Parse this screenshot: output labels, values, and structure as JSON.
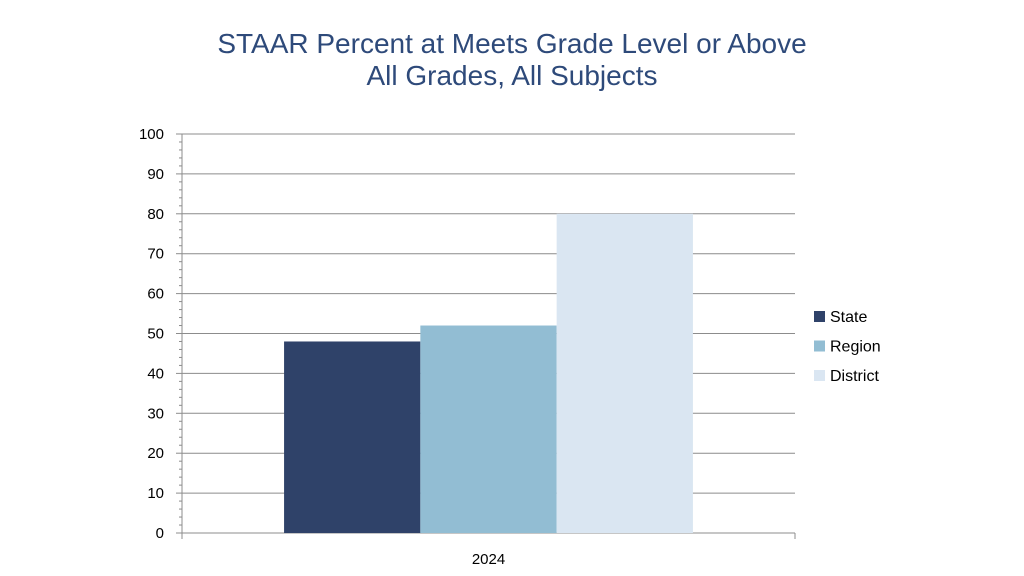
{
  "chart_data": {
    "type": "bar",
    "title": "STAAR Percent at Meets Grade Level or Above",
    "subtitle": "All Grades, All Subjects",
    "categories": [
      "2024"
    ],
    "series": [
      {
        "name": "State",
        "values": [
          48
        ],
        "color": "#2F4269"
      },
      {
        "name": "Region",
        "values": [
          52
        ],
        "color": "#92BDD3"
      },
      {
        "name": "District",
        "values": [
          80
        ],
        "color": "#DAE6F2"
      }
    ],
    "ylim": [
      0,
      100
    ],
    "yticks": [
      0,
      10,
      20,
      30,
      40,
      50,
      60,
      70,
      80,
      90,
      100
    ],
    "grid": true,
    "legend_position": "right"
  }
}
